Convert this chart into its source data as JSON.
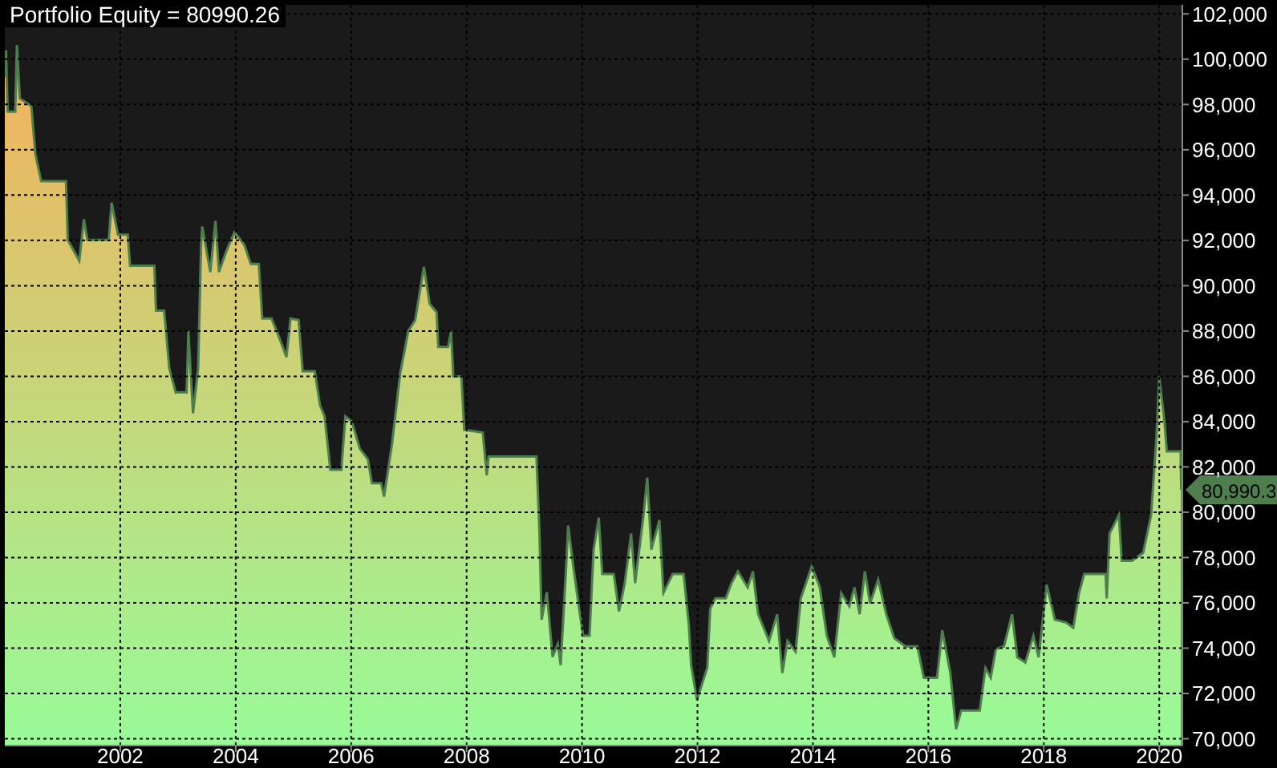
{
  "chart_data": {
    "type": "area",
    "title": "Portfolio Equity = 80990.26",
    "xlim": [
      2000,
      2020.4
    ],
    "xticks": [
      2002,
      2004,
      2006,
      2008,
      2010,
      2012,
      2014,
      2016,
      2018,
      2020
    ],
    "ylim": [
      69700,
      102400
    ],
    "yticks": [
      {
        "value": 70000,
        "label": "70,000"
      },
      {
        "value": 72000,
        "label": "72,000"
      },
      {
        "value": 74000,
        "label": "74,000"
      },
      {
        "value": 76000,
        "label": "76,000"
      },
      {
        "value": 78000,
        "label": "78,000"
      },
      {
        "value": 80000,
        "label": "80,000"
      },
      {
        "value": 82000,
        "label": "82,000"
      },
      {
        "value": 84000,
        "label": "84,000"
      },
      {
        "value": 86000,
        "label": "86,000"
      },
      {
        "value": 88000,
        "label": "88,000"
      },
      {
        "value": 90000,
        "label": "90,000"
      },
      {
        "value": 92000,
        "label": "92,000"
      },
      {
        "value": 94000,
        "label": "94,000"
      },
      {
        "value": 96000,
        "label": "96,000"
      },
      {
        "value": 98000,
        "label": "98,000"
      },
      {
        "value": 100000,
        "label": "100,000"
      },
      {
        "value": 102000,
        "label": "102,000"
      }
    ],
    "grid": true,
    "annotations": [
      "80,990.3"
    ],
    "x": [
      2000.0,
      2000.02,
      2000.05,
      2000.18,
      2000.21,
      2000.26,
      2000.46,
      2000.53,
      2000.63,
      2001.06,
      2001.09,
      2001.29,
      2001.37,
      2001.43,
      2001.8,
      2001.85,
      2001.96,
      2002.13,
      2002.17,
      2002.59,
      2002.62,
      2002.76,
      2002.85,
      2002.96,
      2003.15,
      2003.18,
      2003.26,
      2003.35,
      2003.4,
      2003.42,
      2003.56,
      2003.65,
      2003.71,
      2003.84,
      2003.98,
      2004.15,
      2004.26,
      2004.4,
      2004.46,
      2004.62,
      2004.71,
      2004.88,
      2004.95,
      2005.09,
      2005.16,
      2005.37,
      2005.46,
      2005.54,
      2005.64,
      2005.83,
      2005.9,
      2006.01,
      2006.15,
      2006.29,
      2006.36,
      2006.52,
      2006.57,
      2006.71,
      2006.85,
      2006.99,
      2007.11,
      2007.26,
      2007.36,
      2007.48,
      2007.51,
      2007.68,
      2007.73,
      2007.77,
      2007.91,
      2007.96,
      2008.28,
      2008.35,
      2008.38,
      2009.21,
      2009.26,
      2009.3,
      2009.39,
      2009.49,
      2009.58,
      2009.63,
      2009.72,
      2009.76,
      2009.86,
      2009.95,
      2010.02,
      2010.13,
      2010.2,
      2010.29,
      2010.35,
      2010.55,
      2010.64,
      2010.74,
      2010.85,
      2010.92,
      2011.06,
      2011.13,
      2011.2,
      2011.34,
      2011.41,
      2011.57,
      2011.76,
      2011.85,
      2011.89,
      2011.99,
      2012.08,
      2012.17,
      2012.22,
      2012.31,
      2012.49,
      2012.59,
      2012.7,
      2012.87,
      2012.96,
      2013.05,
      2013.24,
      2013.38,
      2013.47,
      2013.56,
      2013.7,
      2013.79,
      2013.98,
      2014.12,
      2014.24,
      2014.37,
      2014.49,
      2014.63,
      2014.72,
      2014.81,
      2014.9,
      2014.99,
      2015.13,
      2015.27,
      2015.41,
      2015.6,
      2015.81,
      2015.92,
      2016.15,
      2016.24,
      2016.38,
      2016.48,
      2016.57,
      2016.89,
      2016.99,
      2017.08,
      2017.17,
      2017.31,
      2017.45,
      2017.54,
      2017.68,
      2017.82,
      2017.91,
      2018.05,
      2018.19,
      2018.38,
      2018.51,
      2018.61,
      2018.7,
      2019.07,
      2019.09,
      2019.14,
      2019.3,
      2019.35,
      2019.53,
      2019.72,
      2019.86,
      2019.95,
      2020.0,
      2020.09,
      2020.13,
      2020.37,
      2020.38
    ],
    "series": [
      {
        "color": "#4e7d4e",
        "values": [
          99220,
          100390,
          97680,
          97680,
          100630,
          98270,
          97920,
          95790,
          94610,
          94610,
          92020,
          91100,
          92930,
          92020,
          92020,
          93670,
          92250,
          92250,
          90880,
          90880,
          88900,
          88900,
          86350,
          85290,
          85290,
          88000,
          84370,
          86350,
          91800,
          92610,
          90600,
          92870,
          90600,
          91540,
          92370,
          91800,
          90960,
          90960,
          88550,
          88550,
          88000,
          86850,
          88550,
          88480,
          86230,
          86230,
          84720,
          84230,
          81870,
          81870,
          84230,
          84010,
          82810,
          82340,
          81280,
          81280,
          80690,
          83050,
          86130,
          88000,
          88480,
          90840,
          89200,
          88830,
          87300,
          87300,
          88000,
          86000,
          86000,
          83640,
          83520,
          81630,
          82460,
          82460,
          79270,
          75260,
          76470,
          73610,
          74180,
          73250,
          77390,
          79410,
          77390,
          75730,
          74550,
          74550,
          78350,
          79760,
          77270,
          77270,
          75620,
          76870,
          79060,
          76870,
          79760,
          81530,
          78350,
          79650,
          76440,
          77270,
          77270,
          75030,
          73250,
          71720,
          72420,
          73140,
          75730,
          76200,
          76200,
          76870,
          77390,
          76680,
          77390,
          75500,
          74320,
          75500,
          72900,
          74320,
          73840,
          76200,
          77620,
          76680,
          74550,
          73600,
          76430,
          75850,
          76680,
          75500,
          77390,
          75970,
          77030,
          75500,
          74440,
          74080,
          74080,
          72690,
          72690,
          74790,
          72900,
          70420,
          71250,
          71250,
          73130,
          72690,
          73960,
          74080,
          75500,
          73600,
          73370,
          74550,
          73600,
          76800,
          75260,
          75140,
          74900,
          76430,
          77270,
          77270,
          76200,
          79060,
          79880,
          77860,
          77860,
          78210,
          79880,
          83290,
          86000,
          83990,
          82690,
          82690,
          80990
        ]
      }
    ]
  }
}
